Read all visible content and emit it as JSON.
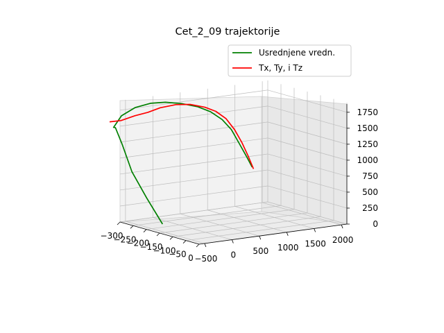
{
  "chart_data": {
    "type": "line",
    "projection": "3d",
    "title": "Cet_2_09 trajektorije",
    "xlabel": "",
    "ylabel": "",
    "zlabel": "",
    "grid": true,
    "legend_position": "top-right",
    "x_ticks": [
      "−300",
      "−250",
      "−200",
      "−150",
      "−100",
      "−50",
      "0"
    ],
    "y_ticks": [
      "−500",
      "0",
      "500",
      "1000",
      "1500",
      "2000"
    ],
    "z_ticks": [
      "0",
      "250",
      "500",
      "750",
      "1000",
      "1250",
      "1500",
      "1750"
    ],
    "series": [
      {
        "name": "Usrednjene vredn.",
        "color": "#008000",
        "x": [
          -205,
          -230,
          -255,
          -270,
          -280,
          -285,
          -282,
          -270,
          -255,
          -240,
          -220,
          -200,
          -185,
          -170,
          -160,
          -155,
          -145,
          -135
        ],
        "y": [
          -280,
          -450,
          -600,
          -700,
          -780,
          -790,
          -660,
          -470,
          -260,
          -60,
          140,
          340,
          500,
          640,
          760,
          870,
          960,
          1020
        ],
        "z": [
          40,
          440,
          840,
          1250,
          1520,
          1520,
          1690,
          1810,
          1870,
          1880,
          1860,
          1810,
          1730,
          1610,
          1450,
          1240,
          1030,
          860
        ]
      },
      {
        "name": "Tx, Ty, i Tz",
        "color": "#ff0000",
        "x": [
          -300,
          -280,
          -260,
          -240,
          -220,
          -200,
          -190,
          -175,
          -165,
          -155,
          -150,
          -145,
          -138,
          -130
        ],
        "y": [
          -790,
          -680,
          -520,
          -380,
          -250,
          -60,
          150,
          350,
          500,
          640,
          770,
          880,
          960,
          1020
        ],
        "z": [
          1590,
          1620,
          1700,
          1760,
          1840,
          1890,
          1880,
          1830,
          1760,
          1640,
          1460,
          1250,
          1040,
          840
        ]
      }
    ]
  }
}
